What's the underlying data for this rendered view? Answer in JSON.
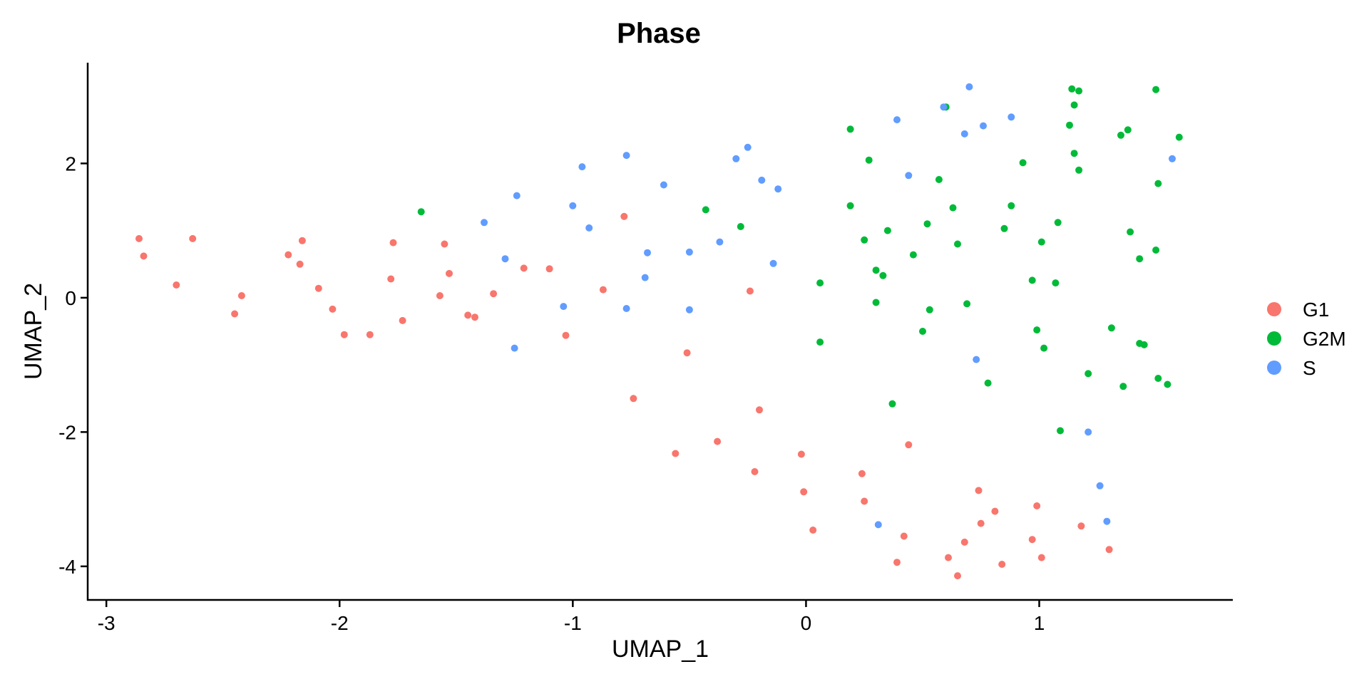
{
  "chart_data": {
    "type": "scatter",
    "title": "Phase",
    "xlabel": "UMAP_1",
    "ylabel": "UMAP_2",
    "xlim": [
      -3.08,
      1.83
    ],
    "ylim": [
      -4.5,
      3.5
    ],
    "xticks": [
      -3,
      -2,
      -1,
      0,
      1
    ],
    "yticks": [
      -4,
      -2,
      0,
      2
    ],
    "grid": false,
    "legend_position": "right",
    "series": [
      {
        "name": "G1",
        "color": "#F8766D",
        "points": [
          [
            -2.86,
            0.88
          ],
          [
            -2.84,
            0.62
          ],
          [
            -2.63,
            0.88
          ],
          [
            -2.7,
            0.19
          ],
          [
            -2.45,
            -0.24
          ],
          [
            -2.42,
            0.03
          ],
          [
            -2.22,
            0.64
          ],
          [
            -2.16,
            0.85
          ],
          [
            -2.17,
            0.5
          ],
          [
            -2.09,
            0.14
          ],
          [
            -2.03,
            -0.17
          ],
          [
            -1.98,
            -0.55
          ],
          [
            -1.87,
            -0.55
          ],
          [
            -1.78,
            0.28
          ],
          [
            -1.77,
            0.82
          ],
          [
            -1.73,
            -0.34
          ],
          [
            -1.57,
            0.03
          ],
          [
            -1.55,
            0.8
          ],
          [
            -1.53,
            0.36
          ],
          [
            -1.45,
            -0.26
          ],
          [
            -1.42,
            -0.29
          ],
          [
            -1.34,
            0.06
          ],
          [
            -1.21,
            0.44
          ],
          [
            -1.1,
            0.43
          ],
          [
            -1.03,
            -0.56
          ],
          [
            -0.87,
            0.12
          ],
          [
            -0.78,
            1.21
          ],
          [
            -0.74,
            -1.5
          ],
          [
            -0.51,
            -0.82
          ],
          [
            -0.56,
            -2.32
          ],
          [
            -0.38,
            -2.14
          ],
          [
            -0.24,
            0.1
          ],
          [
            -0.22,
            -2.59
          ],
          [
            -0.2,
            -1.67
          ],
          [
            -0.02,
            -2.33
          ],
          [
            -0.01,
            -2.89
          ],
          [
            0.03,
            -3.46
          ],
          [
            0.24,
            -2.62
          ],
          [
            0.25,
            -3.03
          ],
          [
            0.39,
            -3.94
          ],
          [
            0.42,
            -3.55
          ],
          [
            0.44,
            -2.19
          ],
          [
            0.61,
            -3.87
          ],
          [
            0.65,
            -4.14
          ],
          [
            0.68,
            -3.64
          ],
          [
            0.74,
            -2.87
          ],
          [
            0.75,
            -3.36
          ],
          [
            0.81,
            -3.18
          ],
          [
            0.84,
            -3.97
          ],
          [
            0.97,
            -3.6
          ],
          [
            0.99,
            -3.1
          ],
          [
            1.01,
            -3.87
          ],
          [
            1.18,
            -3.4
          ],
          [
            1.3,
            -3.75
          ]
        ]
      },
      {
        "name": "G2M",
        "color": "#00BA38",
        "points": [
          [
            -1.65,
            1.28
          ],
          [
            -0.43,
            1.31
          ],
          [
            -0.28,
            1.06
          ],
          [
            0.06,
            0.22
          ],
          [
            0.06,
            -0.66
          ],
          [
            0.19,
            2.51
          ],
          [
            0.19,
            1.37
          ],
          [
            0.25,
            0.86
          ],
          [
            0.27,
            2.05
          ],
          [
            0.3,
            0.41
          ],
          [
            0.3,
            -0.07
          ],
          [
            0.33,
            0.33
          ],
          [
            0.35,
            1.0
          ],
          [
            0.37,
            -1.58
          ],
          [
            0.46,
            0.64
          ],
          [
            0.5,
            -0.5
          ],
          [
            0.52,
            1.1
          ],
          [
            0.53,
            -0.18
          ],
          [
            0.57,
            1.76
          ],
          [
            0.6,
            2.84
          ],
          [
            0.63,
            1.34
          ],
          [
            0.65,
            0.8
          ],
          [
            0.69,
            -0.09
          ],
          [
            0.78,
            -1.27
          ],
          [
            0.85,
            1.03
          ],
          [
            0.88,
            1.37
          ],
          [
            0.93,
            2.01
          ],
          [
            0.97,
            0.26
          ],
          [
            0.99,
            -0.48
          ],
          [
            1.01,
            0.83
          ],
          [
            1.02,
            -0.75
          ],
          [
            1.07,
            0.22
          ],
          [
            1.08,
            1.12
          ],
          [
            1.09,
            -1.98
          ],
          [
            1.13,
            2.57
          ],
          [
            1.14,
            3.11
          ],
          [
            1.15,
            2.15
          ],
          [
            1.15,
            2.87
          ],
          [
            1.17,
            3.08
          ],
          [
            1.17,
            1.9
          ],
          [
            1.21,
            -1.13
          ],
          [
            1.31,
            -0.45
          ],
          [
            1.35,
            2.42
          ],
          [
            1.36,
            -1.32
          ],
          [
            1.38,
            2.5
          ],
          [
            1.39,
            0.98
          ],
          [
            1.43,
            0.58
          ],
          [
            1.43,
            -0.68
          ],
          [
            1.45,
            -0.7
          ],
          [
            1.5,
            0.71
          ],
          [
            1.5,
            3.1
          ],
          [
            1.51,
            -1.2
          ],
          [
            1.51,
            1.7
          ],
          [
            1.55,
            -1.29
          ],
          [
            1.6,
            2.39
          ]
        ]
      },
      {
        "name": "S",
        "color": "#619CFF",
        "points": [
          [
            -1.38,
            1.12
          ],
          [
            -1.29,
            0.58
          ],
          [
            -1.24,
            1.52
          ],
          [
            -1.25,
            -0.75
          ],
          [
            -1.04,
            -0.13
          ],
          [
            -1.0,
            1.37
          ],
          [
            -0.96,
            1.95
          ],
          [
            -0.93,
            1.04
          ],
          [
            -0.77,
            2.12
          ],
          [
            -0.77,
            -0.16
          ],
          [
            -0.68,
            0.67
          ],
          [
            -0.69,
            0.3
          ],
          [
            -0.61,
            1.68
          ],
          [
            -0.5,
            0.68
          ],
          [
            -0.5,
            -0.18
          ],
          [
            -0.37,
            0.83
          ],
          [
            -0.3,
            2.07
          ],
          [
            -0.25,
            2.24
          ],
          [
            -0.19,
            1.75
          ],
          [
            -0.14,
            0.51
          ],
          [
            -0.12,
            1.62
          ],
          [
            0.31,
            -3.38
          ],
          [
            0.39,
            2.65
          ],
          [
            0.44,
            1.82
          ],
          [
            0.59,
            2.84
          ],
          [
            0.68,
            2.44
          ],
          [
            0.7,
            3.14
          ],
          [
            0.73,
            -0.92
          ],
          [
            0.76,
            2.56
          ],
          [
            0.88,
            2.69
          ],
          [
            1.21,
            -2.0
          ],
          [
            1.26,
            -2.8
          ],
          [
            1.29,
            -3.33
          ],
          [
            1.57,
            2.07
          ]
        ]
      }
    ]
  }
}
